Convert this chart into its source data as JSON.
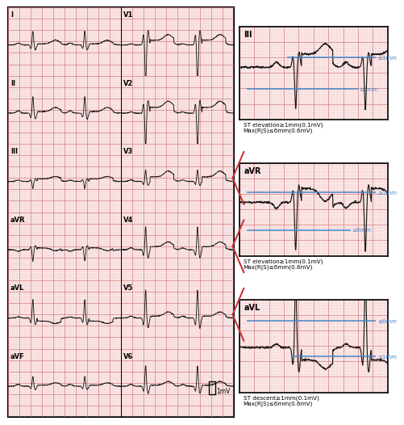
{
  "bg_color": "#fce8e8",
  "grid_major_color": "#d48080",
  "grid_minor_color": "#f0c8c8",
  "ecg_color": "#1a1a1a",
  "blue_line_color": "#4488cc",
  "arrow_color": "#cc3333",
  "panel_texts": [
    "ST elevation≥1mm(0.1mV)\nMax(R|S)≤6mm(0.6mV)",
    "ST elevation≥1mm(0.1mV)\nMax(R|S)≤6mm(0.6mV)",
    "ST descent≥1mm(0.1mV)\nMax(R|S)≤6mm(0.6mV)"
  ],
  "panel_blue_labels": [
    [
      "≥1mm",
      "≤6mm"
    ],
    [
      "≥1mm",
      "≤6mm"
    ],
    [
      "≤6mm",
      "≥1mm"
    ]
  ],
  "panel_keys": [
    "III",
    "aVR",
    "aVL"
  ],
  "lead_labels": [
    "I",
    "II",
    "III",
    "aVR",
    "aVL",
    "aVF"
  ],
  "v_labels": [
    "V1",
    "V2",
    "V3",
    "V4",
    "V5",
    "V6"
  ]
}
